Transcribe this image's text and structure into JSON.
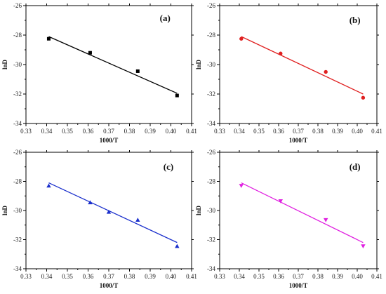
{
  "chart_data": [
    {
      "type": "scatter",
      "panel_label": "(a)",
      "xlabel": "1000/T",
      "ylabel": "lnD",
      "xlim": [
        0.33,
        0.41
      ],
      "ylim": [
        -34,
        -26
      ],
      "xticks": [
        "0.33",
        "0.34",
        "0.35",
        "0.36",
        "0.37",
        "0.38",
        "0.39",
        "0.40",
        "0.41"
      ],
      "yticks": [
        "-34",
        "-32",
        "-30",
        "-28",
        "-26"
      ],
      "series": [
        {
          "color": "#000000",
          "marker": "square",
          "points": [
            [
              0.341,
              -28.25
            ],
            [
              0.361,
              -29.2
            ],
            [
              0.384,
              -30.45
            ],
            [
              0.403,
              -32.1
            ]
          ],
          "fit": [
            [
              0.341,
              -28.1
            ],
            [
              0.403,
              -31.95
            ]
          ]
        }
      ]
    },
    {
      "type": "scatter",
      "panel_label": "(b)",
      "xlabel": "1000/T",
      "ylabel": "lnD",
      "xlim": [
        0.33,
        0.41
      ],
      "ylim": [
        -34,
        -26
      ],
      "xticks": [
        "0.33",
        "0.34",
        "0.35",
        "0.36",
        "0.37",
        "0.38",
        "0.39",
        "0.40",
        "0.41"
      ],
      "yticks": [
        "-34",
        "-32",
        "-30",
        "-28",
        "-26"
      ],
      "series": [
        {
          "color": "#e02020",
          "marker": "circle",
          "points": [
            [
              0.341,
              -28.25
            ],
            [
              0.361,
              -29.25
            ],
            [
              0.384,
              -30.5
            ],
            [
              0.403,
              -32.25
            ]
          ],
          "fit": [
            [
              0.341,
              -28.1
            ],
            [
              0.403,
              -32.0
            ]
          ]
        }
      ]
    },
    {
      "type": "scatter",
      "panel_label": "(c)",
      "xlabel": "1000/T",
      "ylabel": "lnD",
      "xlim": [
        0.33,
        0.41
      ],
      "ylim": [
        -34,
        -26
      ],
      "xticks": [
        "0.33",
        "0.34",
        "0.35",
        "0.36",
        "0.37",
        "0.38",
        "0.39",
        "0.40",
        "0.41"
      ],
      "yticks": [
        "-34",
        "-32",
        "-30",
        "-28",
        "-26"
      ],
      "series": [
        {
          "color": "#1a2fcc",
          "marker": "triangle-up",
          "points": [
            [
              0.341,
              -28.3
            ],
            [
              0.361,
              -29.45
            ],
            [
              0.37,
              -30.1
            ],
            [
              0.384,
              -30.65
            ],
            [
              0.403,
              -32.45
            ]
          ],
          "fit": [
            [
              0.341,
              -28.1
            ],
            [
              0.403,
              -32.2
            ]
          ]
        }
      ]
    },
    {
      "type": "scatter",
      "panel_label": "(d)",
      "xlabel": "1000/T",
      "ylabel": "lnD",
      "xlim": [
        0.33,
        0.41
      ],
      "ylim": [
        -34,
        -26
      ],
      "xticks": [
        "0.33",
        "0.34",
        "0.35",
        "0.36",
        "0.37",
        "0.38",
        "0.39",
        "0.40",
        "0.41"
      ],
      "yticks": [
        "-34",
        "-32",
        "-30",
        "-28",
        "-26"
      ],
      "series": [
        {
          "color": "#e020e0",
          "marker": "triangle-down",
          "points": [
            [
              0.341,
              -28.3
            ],
            [
              0.361,
              -29.35
            ],
            [
              0.384,
              -30.65
            ],
            [
              0.403,
              -32.45
            ]
          ],
          "fit": [
            [
              0.341,
              -28.1
            ],
            [
              0.403,
              -32.2
            ]
          ]
        }
      ]
    }
  ]
}
